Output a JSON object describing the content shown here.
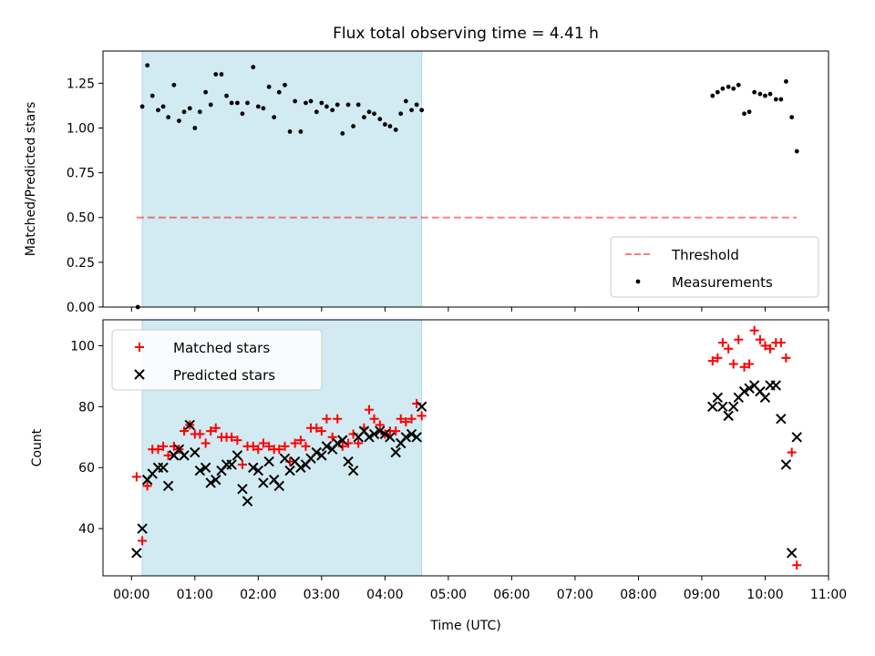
{
  "chart_data": {
    "type": "scatter",
    "title": "Flux total observing time = 4.41 h",
    "xlabel": "Time (UTC)",
    "xlim": [
      -0.45,
      11.0
    ],
    "x_tick_values": [
      0,
      1,
      2,
      3,
      4,
      5,
      6,
      7,
      8,
      9,
      10,
      11
    ],
    "x_tick_labels": [
      "00:00",
      "01:00",
      "02:00",
      "03:00",
      "04:00",
      "05:00",
      "06:00",
      "07:00",
      "08:00",
      "09:00",
      "10:00",
      "11:00"
    ],
    "shaded_interval": [
      0.17,
      4.58
    ],
    "shade_color": "#add8e6",
    "panels": [
      {
        "name": "ratio",
        "ylabel": "Matched/Predicted stars",
        "ylim": [
          0,
          1.43
        ],
        "y_tick_values": [
          0,
          0.25,
          0.5,
          0.75,
          1.0,
          1.25
        ],
        "y_tick_labels": [
          "0.00",
          "0.25",
          "0.50",
          "0.75",
          "1.00",
          "1.25"
        ],
        "legend": {
          "position": "lower right",
          "entries": [
            "Threshold",
            "Measurements"
          ]
        },
        "series": [
          {
            "name": "Threshold",
            "kind": "dashed-line",
            "color": "#ff0000",
            "opacity": 0.5,
            "x": [
              0.08,
              10.5
            ],
            "y": [
              0.5,
              0.5
            ]
          },
          {
            "name": "Measurements",
            "kind": "dot",
            "color": "#000000",
            "x": [
              0.1,
              0.17,
              0.25,
              0.33,
              0.42,
              0.5,
              0.58,
              0.67,
              0.75,
              0.83,
              0.92,
              1.0,
              1.08,
              1.17,
              1.25,
              1.33,
              1.42,
              1.5,
              1.58,
              1.67,
              1.75,
              1.83,
              1.92,
              2.0,
              2.08,
              2.17,
              2.25,
              2.33,
              2.42,
              2.5,
              2.58,
              2.67,
              2.75,
              2.83,
              2.92,
              3.0,
              3.08,
              3.17,
              3.25,
              3.33,
              3.42,
              3.5,
              3.58,
              3.67,
              3.75,
              3.83,
              3.92,
              4.0,
              4.08,
              4.17,
              4.25,
              4.33,
              4.42,
              4.5,
              4.58,
              9.17,
              9.25,
              9.33,
              9.42,
              9.5,
              9.58,
              9.67,
              9.75,
              9.83,
              9.92,
              10.0,
              10.08,
              10.17,
              10.25,
              10.33,
              10.42,
              10.5
            ],
            "y": [
              0.0,
              1.12,
              1.35,
              1.18,
              1.1,
              1.12,
              1.06,
              1.24,
              1.04,
              1.09,
              1.11,
              1.0,
              1.09,
              1.2,
              1.13,
              1.3,
              1.3,
              1.18,
              1.14,
              1.14,
              1.08,
              1.14,
              1.34,
              1.12,
              1.11,
              1.23,
              1.06,
              1.2,
              1.24,
              0.98,
              1.15,
              0.98,
              1.14,
              1.15,
              1.09,
              1.14,
              1.12,
              1.1,
              1.13,
              0.97,
              1.13,
              1.01,
              1.13,
              1.06,
              1.09,
              1.08,
              1.05,
              1.02,
              1.01,
              0.99,
              1.08,
              1.15,
              1.1,
              1.13,
              1.1,
              1.18,
              1.2,
              1.22,
              1.23,
              1.22,
              1.24,
              1.08,
              1.09,
              1.2,
              1.19,
              1.18,
              1.19,
              1.16,
              1.16,
              1.26,
              1.06,
              0.87
            ]
          }
        ]
      },
      {
        "name": "counts",
        "ylabel": "Count",
        "ylim": [
          24.5,
          108.5
        ],
        "y_tick_values": [
          40,
          60,
          80,
          100
        ],
        "y_tick_labels": [
          "40",
          "60",
          "80",
          "100"
        ],
        "legend": {
          "position": "upper left",
          "entries": [
            "Matched stars",
            "Predicted stars"
          ]
        },
        "series": [
          {
            "name": "Matched stars",
            "kind": "plus",
            "color": "#ff0000",
            "x": [
              0.08,
              0.17,
              0.25,
              0.33,
              0.42,
              0.5,
              0.58,
              0.67,
              0.75,
              0.83,
              0.92,
              1.0,
              1.08,
              1.17,
              1.25,
              1.33,
              1.42,
              1.5,
              1.58,
              1.67,
              1.75,
              1.83,
              1.92,
              2.0,
              2.08,
              2.17,
              2.25,
              2.33,
              2.42,
              2.5,
              2.58,
              2.67,
              2.75,
              2.83,
              2.92,
              3.0,
              3.08,
              3.17,
              3.25,
              3.33,
              3.42,
              3.5,
              3.58,
              3.67,
              3.75,
              3.83,
              3.92,
              4.0,
              4.08,
              4.17,
              4.25,
              4.33,
              4.42,
              4.5,
              4.58,
              9.17,
              9.25,
              9.33,
              9.42,
              9.5,
              9.58,
              9.67,
              9.75,
              9.83,
              9.92,
              10.0,
              10.08,
              10.17,
              10.25,
              10.33,
              10.42,
              10.5
            ],
            "y": [
              57,
              36,
              54,
              66,
              66,
              67,
              64,
              67,
              66,
              72,
              74,
              71,
              71,
              68,
              72,
              73,
              70,
              70,
              70,
              69,
              61,
              67,
              67,
              66,
              68,
              67,
              66,
              66,
              67,
              62,
              68,
              69,
              67,
              73,
              73,
              72,
              76,
              70,
              76,
              67,
              68,
              71,
              68,
              73,
              79,
              76,
              74,
              71,
              72,
              72,
              76,
              75,
              76,
              81,
              77,
              95,
              96,
              101,
              99,
              94,
              102,
              93,
              94,
              105,
              102,
              100,
              99,
              101,
              101,
              96,
              65,
              28
            ]
          },
          {
            "name": "Predicted stars",
            "kind": "x",
            "color": "#000000",
            "x": [
              0.08,
              0.17,
              0.25,
              0.33,
              0.42,
              0.5,
              0.58,
              0.67,
              0.75,
              0.83,
              0.92,
              1.0,
              1.08,
              1.17,
              1.25,
              1.33,
              1.42,
              1.5,
              1.58,
              1.67,
              1.75,
              1.83,
              1.92,
              2.0,
              2.08,
              2.17,
              2.25,
              2.33,
              2.42,
              2.5,
              2.58,
              2.67,
              2.75,
              2.83,
              2.92,
              3.0,
              3.08,
              3.17,
              3.25,
              3.33,
              3.42,
              3.5,
              3.58,
              3.67,
              3.75,
              3.83,
              3.92,
              4.0,
              4.08,
              4.17,
              4.25,
              4.33,
              4.42,
              4.5,
              4.58,
              9.17,
              9.25,
              9.33,
              9.42,
              9.5,
              9.58,
              9.67,
              9.75,
              9.83,
              9.92,
              10.0,
              10.08,
              10.17,
              10.25,
              10.33,
              10.42,
              10.5
            ],
            "y": [
              32,
              40,
              56,
              58,
              60,
              60,
              54,
              64,
              66,
              64,
              74,
              65,
              59,
              60,
              55,
              56,
              59,
              61,
              61,
              64,
              53,
              49,
              60,
              59,
              55,
              62,
              56,
              54,
              63,
              59,
              62,
              60,
              61,
              63,
              65,
              64,
              67,
              66,
              68,
              69,
              62,
              59,
              70,
              72,
              70,
              71,
              72,
              71,
              70,
              65,
              68,
              70,
              71,
              70,
              80,
              80,
              83,
              80,
              77,
              80,
              83,
              85,
              86,
              87,
              85,
              83,
              87,
              87,
              76,
              61,
              32,
              70
            ]
          }
        ]
      }
    ]
  }
}
